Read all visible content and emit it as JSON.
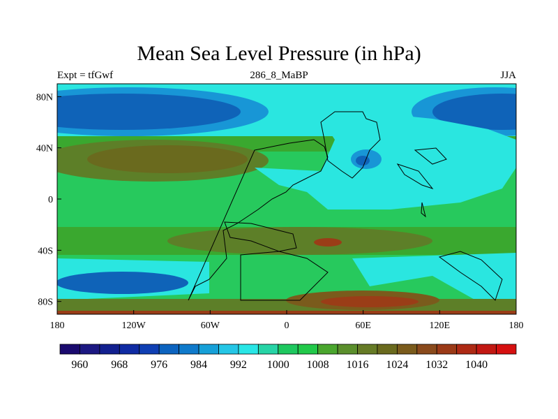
{
  "title": "Mean Sea Level Pressure (in hPa)",
  "subtitle_left": "Expt = tfGwf",
  "subtitle_center": "286_8_MaBP",
  "subtitle_right": "JJA",
  "lon_ticks": [
    "180",
    "120W",
    "60W",
    "0",
    "60E",
    "120E",
    "180"
  ],
  "lat_ticks": [
    "80N",
    "40N",
    "0",
    "40S",
    "80S"
  ],
  "colorbar": {
    "labels": [
      "960",
      "968",
      "976",
      "984",
      "992",
      "1000",
      "1008",
      "1016",
      "1024",
      "1032",
      "1040"
    ],
    "colors": [
      "#1a0a6e",
      "#1c1882",
      "#12208f",
      "#0f2ba3",
      "#0f3fb3",
      "#0c63bf",
      "#0f7acb",
      "#16a0d8",
      "#25c6e6",
      "#29e6e6",
      "#27d4a6",
      "#1ec85f",
      "#22c94a",
      "#4aa62e",
      "#5b8f2c",
      "#667b26",
      "#6a6a1e",
      "#7a5b1c",
      "#8a4a1c",
      "#9b3a17",
      "#ae2a14",
      "#c21812",
      "#d61010"
    ]
  },
  "colors": {
    "deep_blue": "#0f63b8",
    "mid_blue": "#1896d6",
    "cyan": "#2ae6e0",
    "light_green": "#27c95d",
    "green": "#3aa82f",
    "olive": "#5d7f28",
    "brown": "#7a5b1c",
    "rust": "#9a3d17"
  }
}
